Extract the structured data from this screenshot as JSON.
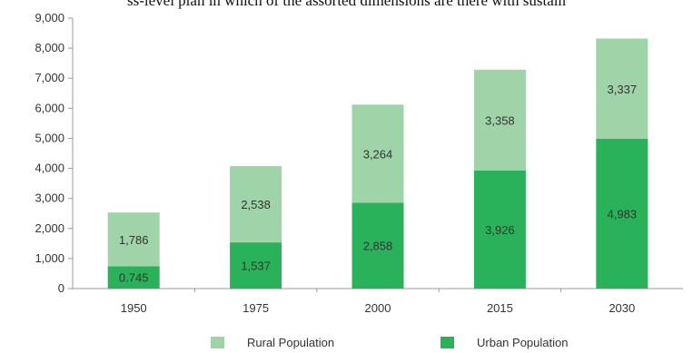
{
  "header_text": "ss-level plan in which of the assorted dimensions are there with sustain",
  "colors": {
    "rural": "#9fd4a8",
    "urban": "#2ab25b",
    "axis": "#999999",
    "text": "#333333"
  },
  "chart_data": {
    "type": "bar",
    "stacked": true,
    "categories": [
      "1950",
      "1975",
      "2000",
      "2015",
      "2030"
    ],
    "series": [
      {
        "name": "Urban Population",
        "values": [
          0.745,
          1.537,
          2.858,
          3.926,
          4.983
        ],
        "labels": [
          "0.745",
          "1,537",
          "2,858",
          "3,926",
          "4,983"
        ]
      },
      {
        "name": "Rural Population",
        "values": [
          1.786,
          2.538,
          3.264,
          3.358,
          3.337
        ],
        "labels": [
          "1,786",
          "2,538",
          "3,264",
          "3,358",
          "3,337"
        ]
      }
    ],
    "ylim": [
      0,
      9
    ],
    "yticks": [
      "0",
      "1,000",
      "2,000",
      "3,000",
      "4,000",
      "5,000",
      "6,000",
      "7,000",
      "8,000",
      "9,000"
    ],
    "grid": false,
    "legend_position": "bottom"
  },
  "legend": {
    "rural_label": "Rural Population",
    "urban_label": "Urban Population"
  }
}
